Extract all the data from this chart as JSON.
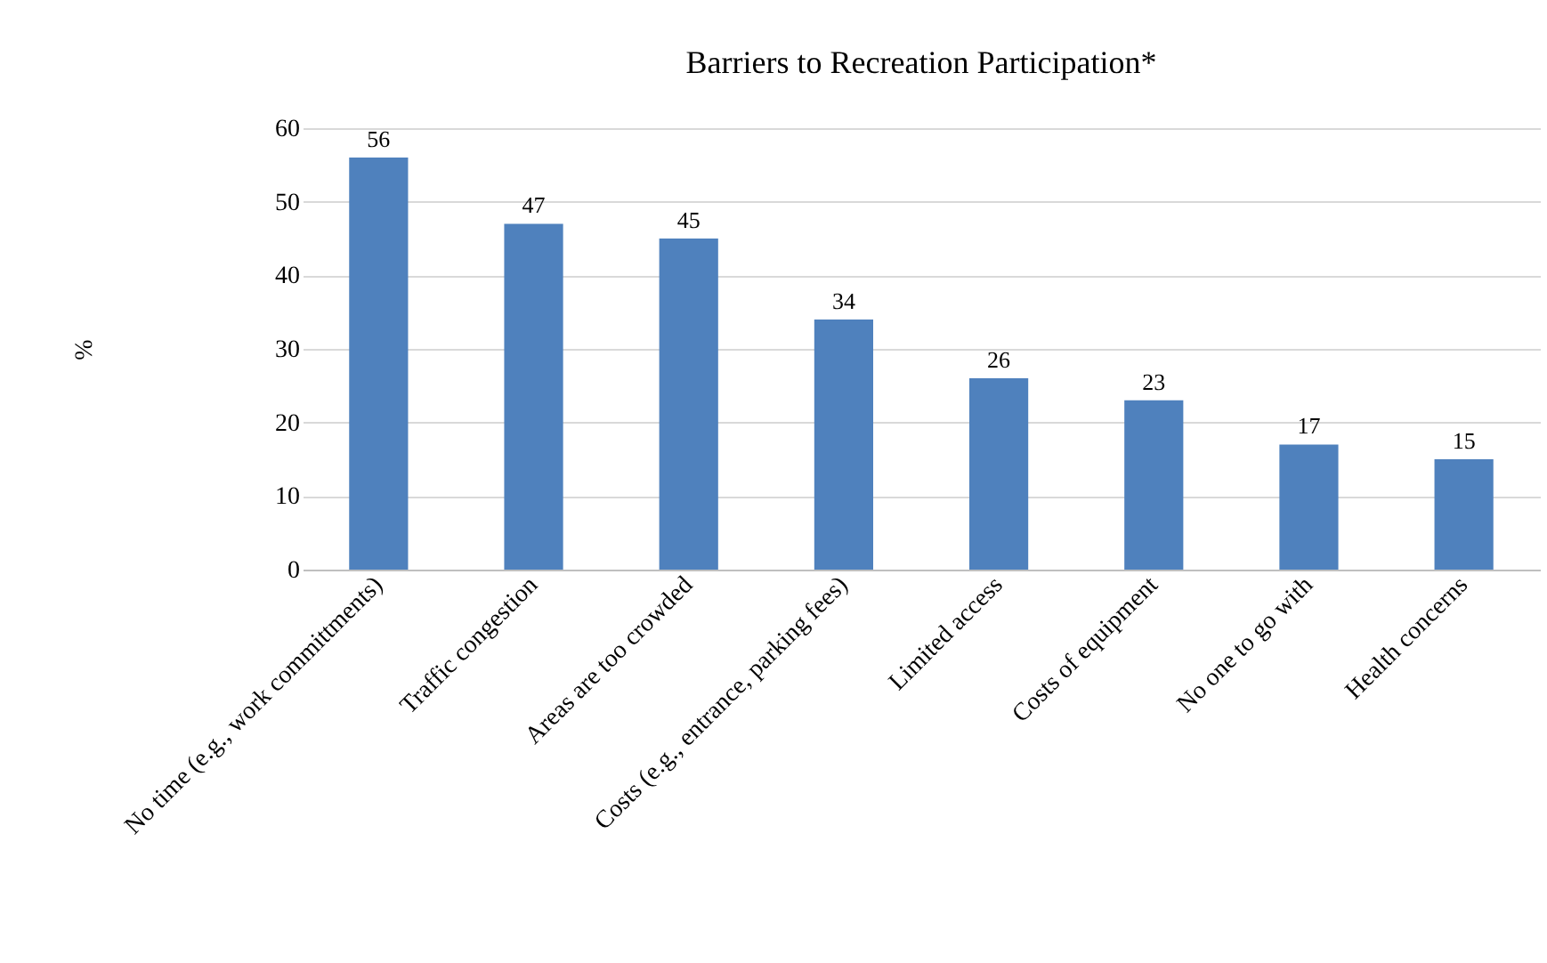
{
  "chart_data": {
    "type": "bar",
    "title": "Barriers to Recreation Participation*",
    "ylabel": "%",
    "categories": [
      "No time (e.g., work committments)",
      "Traffic congestion",
      "Areas are too crowded",
      "Costs (e.g., entrance, parking fees)",
      "Limited access",
      "Costs of equipment",
      "No one to go with",
      "Health concerns"
    ],
    "values": [
      56,
      47,
      45,
      34,
      26,
      23,
      17,
      15
    ],
    "color": "#4f81bd",
    "ylim": [
      0,
      60
    ],
    "yticks": [
      0,
      10,
      20,
      30,
      40,
      50,
      60
    ],
    "grid": "y",
    "data_labels": true
  }
}
